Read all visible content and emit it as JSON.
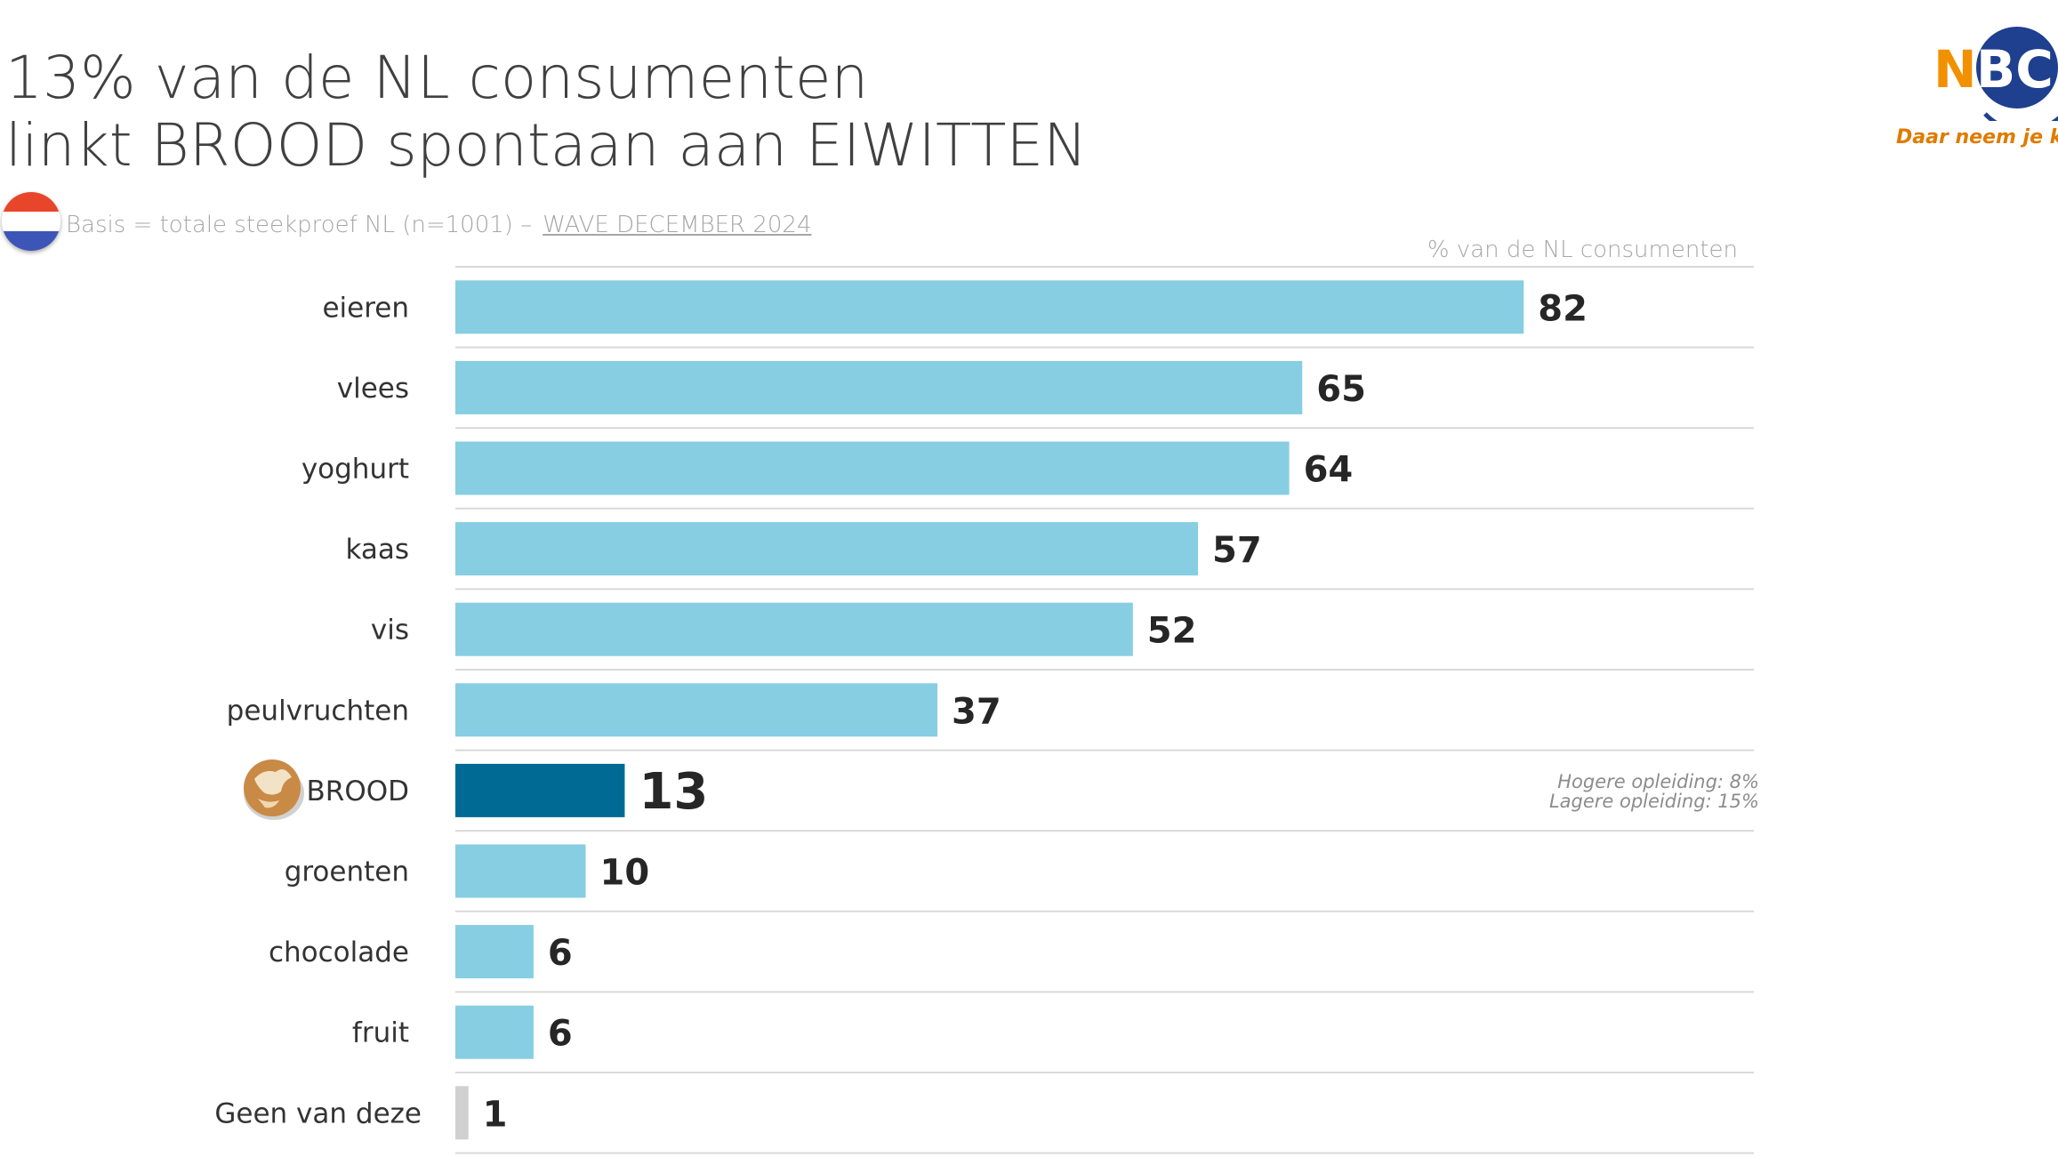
{
  "title": {
    "line1": "13% van de NL consumenten",
    "line2": "linkt BROOD spontaan aan EIWITTEN"
  },
  "basis_text": "Basis = totale steekproef NL (n=1001)  –",
  "wave_text": "WAVE DECEMBER 2024",
  "unit_label": "% van de NL consumenten",
  "logo": {
    "text": "NBC",
    "tagline": "Daar neem je ken"
  },
  "flag_colors": [
    "#e8462b",
    "#ffffff",
    "#3d55b6"
  ],
  "note": {
    "line1": "Hogere opleiding: 8%",
    "line2": "Lagere opleiding: 15%"
  },
  "chart_data": {
    "type": "bar",
    "orientation": "horizontal",
    "categories": [
      "eieren",
      "vlees",
      "yoghurt",
      "kaas",
      "vis",
      "peulvruchten",
      "BROOD",
      "groenten",
      "chocolade",
      "fruit",
      "Geen van deze"
    ],
    "values": [
      82,
      65,
      64,
      57,
      52,
      37,
      13,
      10,
      6,
      6,
      1
    ],
    "highlight": "BROOD",
    "colors": {
      "default": "#87ceE2",
      "highlight": "#006a94",
      "none": "#d0d0d0"
    },
    "xlim": [
      0,
      100
    ],
    "grid": "horizontal separators",
    "legend": "none"
  }
}
